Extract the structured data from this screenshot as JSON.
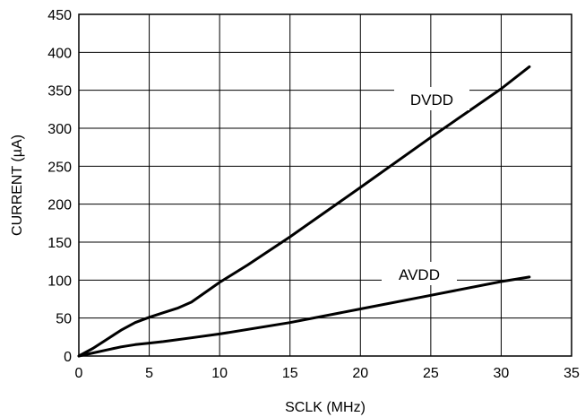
{
  "chart_data": {
    "type": "line",
    "xlabel": "SCLK (MHz)",
    "ylabel": "CURRENT (µA)",
    "xlim": [
      0,
      35
    ],
    "ylim": [
      0,
      450
    ],
    "xticks": [
      "0",
      "5",
      "10",
      "15",
      "20",
      "25",
      "30",
      "35"
    ],
    "yticks": [
      "0",
      "50",
      "100",
      "150",
      "200",
      "250",
      "300",
      "350",
      "400",
      "450"
    ],
    "grid": true,
    "series": [
      {
        "name": "DVDD",
        "x": [
          0,
          1,
          2,
          3,
          4,
          5,
          6,
          7,
          8,
          10,
          12,
          15,
          20,
          25,
          30,
          32
        ],
        "y": [
          0,
          10,
          22,
          34,
          44,
          51,
          57,
          63,
          71,
          97,
          120,
          157,
          222,
          288,
          352,
          381
        ]
      },
      {
        "name": "AVDD",
        "x": [
          0,
          1,
          2,
          3,
          4,
          5,
          6,
          8,
          10,
          15,
          20,
          25,
          30,
          32
        ],
        "y": [
          0,
          4,
          8,
          12,
          15,
          17,
          19,
          24,
          29,
          44,
          62,
          80,
          98,
          104
        ]
      }
    ]
  }
}
